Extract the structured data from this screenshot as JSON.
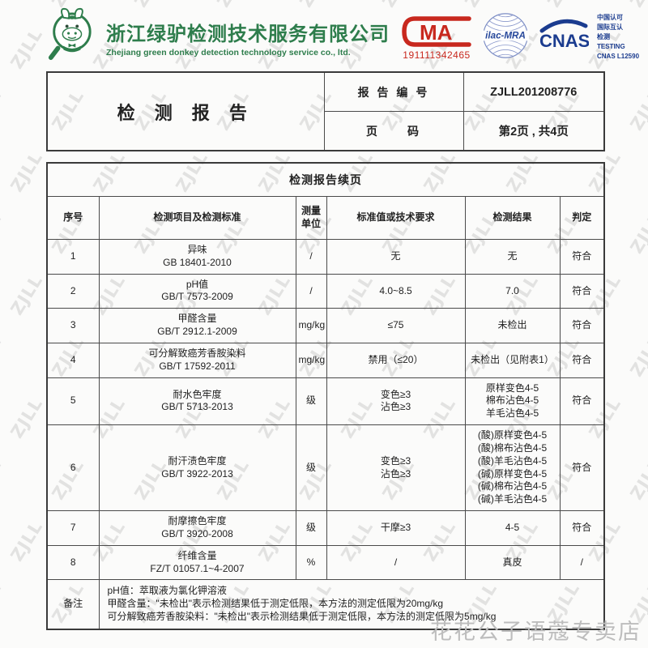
{
  "page": {
    "watermark_text": "ZJLL",
    "store_name": "花花公子语蔻专卖店"
  },
  "colors": {
    "brand_green": "#2e7d4c",
    "cma_red": "#c8281e",
    "ilac_blue": "#27489b",
    "cnas_navy": "#1b3c8f"
  },
  "header": {
    "company_cn": "浙江绿驴检测技术服务有限公司",
    "company_en": "Zhejiang green donkey detection technology service co., ltd.",
    "cma": {
      "letters": "MA",
      "number": "191111342465"
    },
    "ilac": {
      "label": "ilac-MRA"
    },
    "cnas": {
      "wordmark": "CNAS",
      "lines": [
        "中国认可",
        "国际互认",
        "检测",
        "TESTING",
        "CNAS L12590"
      ]
    }
  },
  "report_header": {
    "title": "检 测 报 告",
    "report_no_label": "报 告 编 号",
    "report_no_value": "ZJLL201208776",
    "page_label": "页　　码",
    "page_value": "第2页 , 共4页"
  },
  "table": {
    "title": "检测报告续页",
    "columns": [
      "序号",
      "检测项目及检测标准",
      "测量\n单位",
      "标准值或技术要求",
      "检测结果",
      "判定"
    ],
    "rows": [
      [
        "1",
        "异味\nGB 18401-2010",
        "/",
        "无",
        "无",
        "符合"
      ],
      [
        "2",
        "pH值\nGB/T 7573-2009",
        "/",
        "4.0~8.5",
        "7.0",
        "符合"
      ],
      [
        "3",
        "甲醛含量\nGB/T 2912.1-2009",
        "mg/kg",
        "≤75",
        "未检出",
        "符合"
      ],
      [
        "4",
        "可分解致癌芳香胺染料\nGB/T 17592-2011",
        "mg/kg",
        "禁用（≤20）",
        "未检出（见附表1）",
        "符合"
      ],
      [
        "5",
        "耐水色牢度\nGB/T 5713-2013",
        "级",
        "变色≥3\n沾色≥3",
        "原样变色4-5\n棉布沾色4-5\n羊毛沾色4-5",
        "符合"
      ],
      [
        "6",
        "耐汗渍色牢度\nGB/T 3922-2013",
        "级",
        "变色≥3\n沾色≥3",
        "(酸)原样变色4-5\n(酸)棉布沾色4-5\n(酸)羊毛沾色4-5\n(碱)原样变色4-5\n(碱)棉布沾色4-5\n(碱)羊毛沾色4-5",
        "符合"
      ],
      [
        "7",
        "耐摩擦色牢度\nGB/T 3920-2008",
        "级",
        "干摩≥3",
        "4-5",
        "符合"
      ],
      [
        "8",
        "纤维含量\nFZ/T 01057.1~4-2007",
        "%",
        "/",
        "真皮",
        "/"
      ]
    ],
    "remark_label": "备注",
    "remark_text": "pH值：萃取液为氯化钾溶液\n甲醛含量：\"未检出\"表示检测结果低于测定低限，本方法的测定低限为20mg/kg\n可分解致癌芳香胺染料：\"未检出\"表示检测结果低于测定低限，本方法的测定低限为5mg/kg"
  }
}
